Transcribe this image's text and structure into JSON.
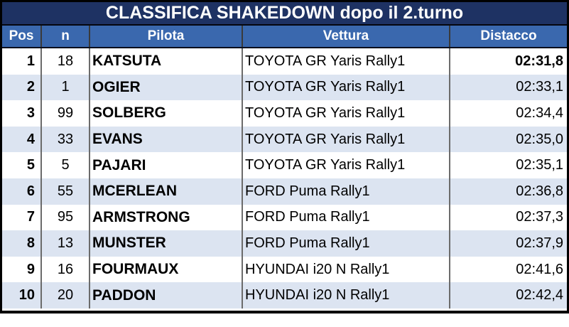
{
  "title": "CLASSIFICA SHAKEDOWN dopo il 2.turno",
  "columns": {
    "pos": "Pos",
    "n": "n",
    "pilota": "Pilota",
    "vettura": "Vettura",
    "distacco": "Distacco"
  },
  "rows": [
    {
      "pos": "1",
      "n": "18",
      "pilota": "KATSUTA",
      "vettura": "TOYOTA GR Yaris Rally1",
      "distacco": "02:31,8",
      "bold": true
    },
    {
      "pos": "2",
      "n": "1",
      "pilota": "OGIER",
      "vettura": "TOYOTA GR Yaris Rally1",
      "distacco": "02:33,1",
      "bold": false
    },
    {
      "pos": "3",
      "n": "99",
      "pilota": "SOLBERG",
      "vettura": "TOYOTA GR Yaris Rally1",
      "distacco": "02:34,4",
      "bold": false
    },
    {
      "pos": "4",
      "n": "33",
      "pilota": "EVANS",
      "vettura": "TOYOTA GR Yaris Rally1",
      "distacco": "02:35,0",
      "bold": false
    },
    {
      "pos": "5",
      "n": "5",
      "pilota": "PAJARI",
      "vettura": "TOYOTA GR Yaris Rally1",
      "distacco": "02:35,1",
      "bold": false
    },
    {
      "pos": "6",
      "n": "55",
      "pilota": "MCERLEAN",
      "vettura": "FORD Puma Rally1",
      "distacco": "02:36,8",
      "bold": false
    },
    {
      "pos": "7",
      "n": "95",
      "pilota": "ARMSTRONG",
      "vettura": "FORD Puma Rally1",
      "distacco": "02:37,3",
      "bold": false
    },
    {
      "pos": "8",
      "n": "13",
      "pilota": "MUNSTER",
      "vettura": "FORD Puma Rally1",
      "distacco": "02:37,9",
      "bold": false
    },
    {
      "pos": "9",
      "n": "16",
      "pilota": "FOURMAUX",
      "vettura": "HYUNDAI i20 N Rally1",
      "distacco": "02:41,6",
      "bold": false
    },
    {
      "pos": "10",
      "n": "20",
      "pilota": "PADDON",
      "vettura": "HYUNDAI i20 N Rally1",
      "distacco": "02:42,4",
      "bold": false
    }
  ],
  "colors": {
    "title_bg": "#1E3263",
    "header_bg": "#3A68AE",
    "alt_row_bg": "#DCE4F1",
    "outer_border": "#000000",
    "column_divider": "#6b6b6b",
    "header_text": "#ffffff",
    "data_text": "#000000"
  }
}
